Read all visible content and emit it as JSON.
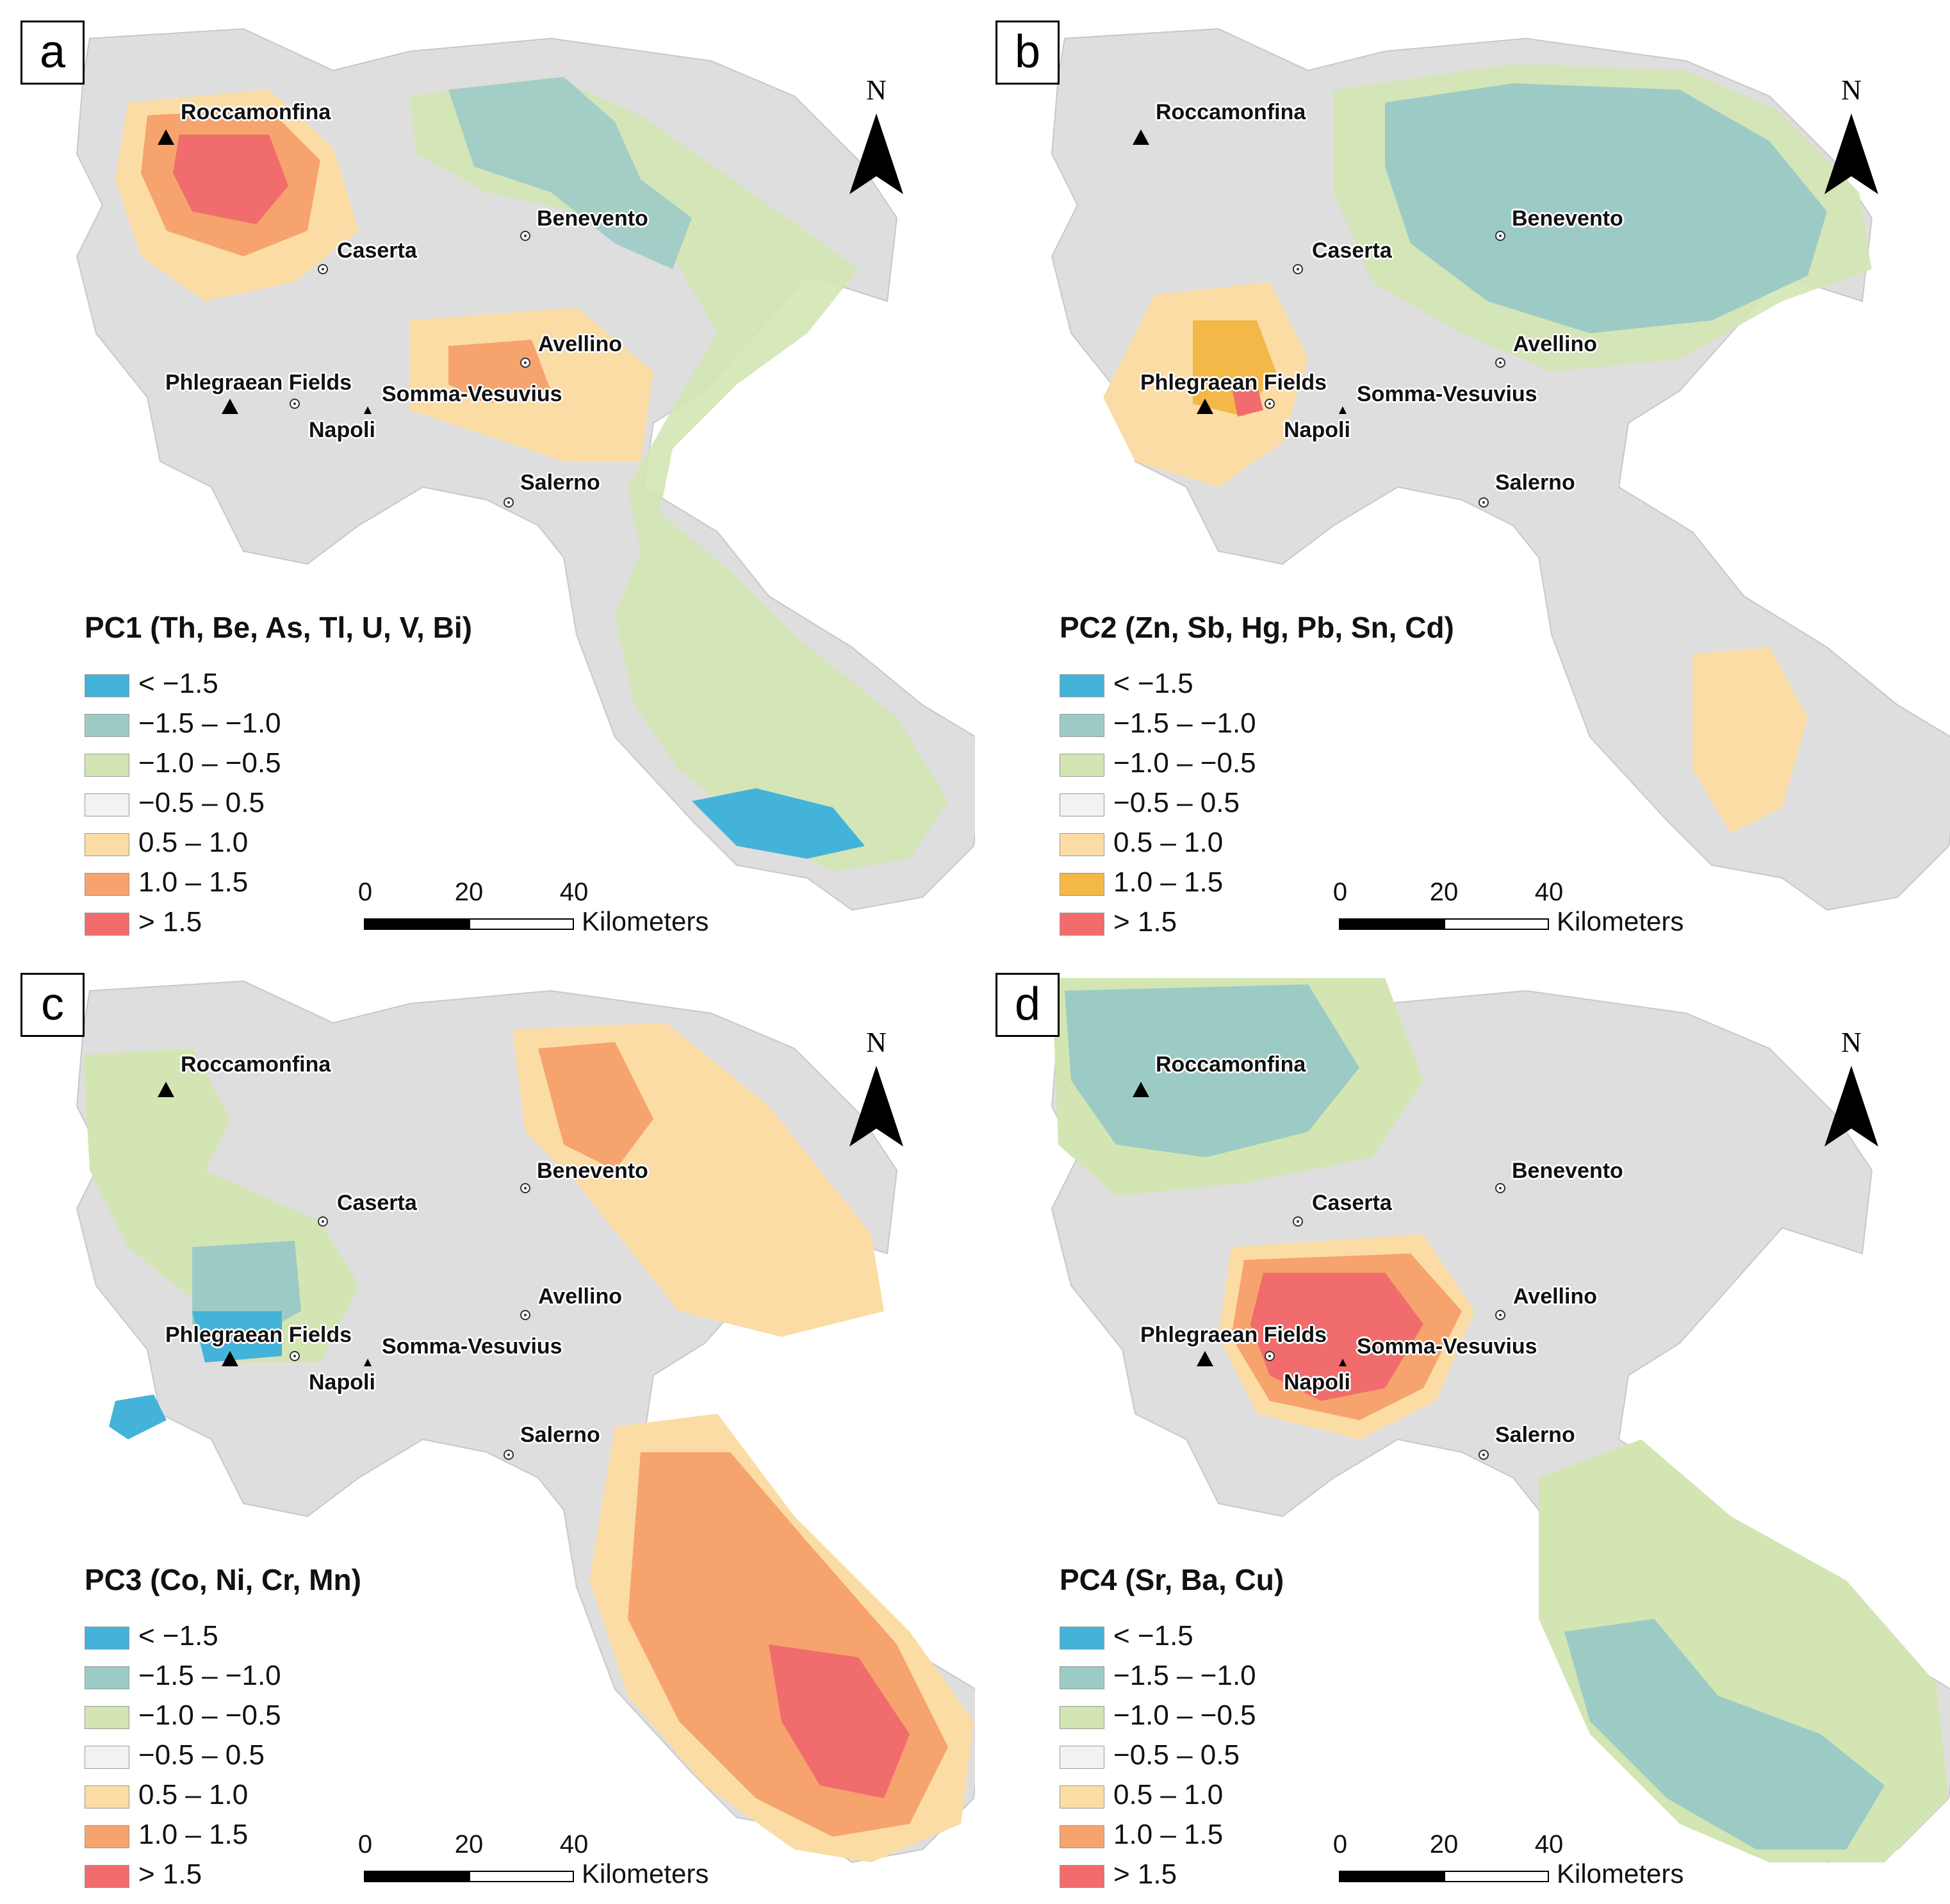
{
  "legend_labels": [
    "< −1.5",
    "−1.5 – −1.0",
    "−1.0 – −0.5",
    "−0.5 – 0.5",
    "0.5 – 1.0",
    "1.0 – 1.5",
    "> 1.5"
  ],
  "legend_colors": [
    "#44b3d9",
    "#9ccbc6",
    "#d3e5b2",
    "#f2f2f2",
    "#fbdca5",
    "#f6a36e",
    "#f16c6c"
  ],
  "legend_colors_pc2": [
    "#44b3d9",
    "#9ccbc6",
    "#d3e5b2",
    "#f2f2f2",
    "#fbdca5",
    "#f3b847",
    "#f16c6c"
  ],
  "north_label": "N",
  "scalebar": {
    "ticks": [
      "0",
      "20",
      "40"
    ],
    "unit": "Kilometers"
  },
  "places": {
    "roccamonfina": "Roccamonfina",
    "caserta": "Caserta",
    "benevento": "Benevento",
    "avellino": "Avellino",
    "phlegraean": "Phlegraean Fields",
    "vesuvius": "Somma-Vesuvius",
    "napoli": "Napoli",
    "salerno": "Salerno"
  },
  "panels": [
    {
      "letter": "a",
      "title": "PC1 (Th, Be, As, Tl, U, V, Bi)"
    },
    {
      "letter": "b",
      "title": "PC2 (Zn, Sb, Hg, Pb, Sn, Cd)"
    },
    {
      "letter": "c",
      "title": "PC3 (Co, Ni, Cr, Mn)"
    },
    {
      "letter": "d",
      "title": "PC4 (Sr, Ba, Cu)"
    }
  ]
}
